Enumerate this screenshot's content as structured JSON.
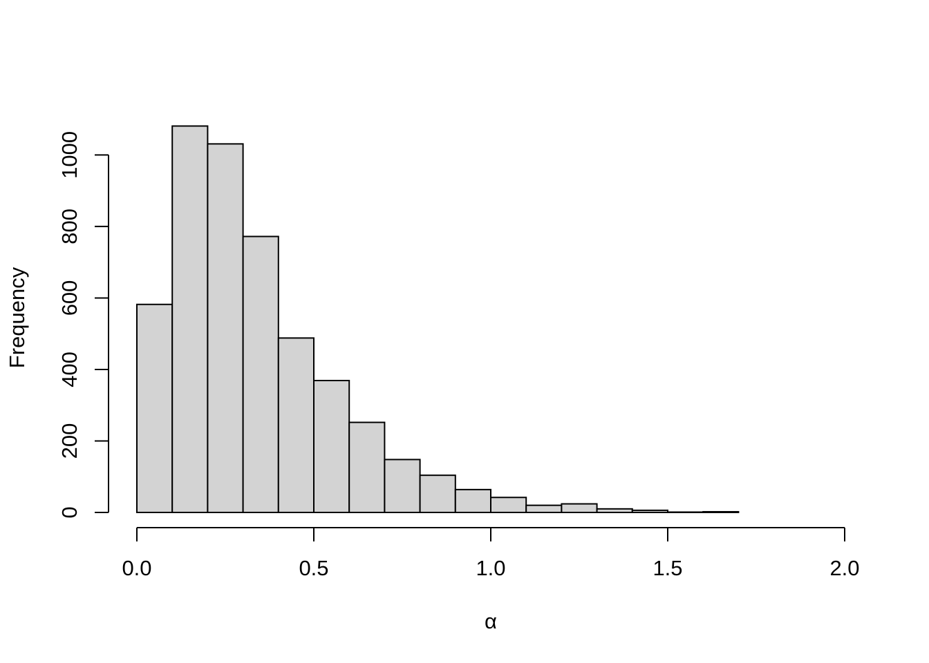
{
  "chart_data": {
    "type": "bar",
    "title": "",
    "xlabel": "α",
    "ylabel": "Frequency",
    "bin_edges": [
      0.0,
      0.1,
      0.2,
      0.3,
      0.4,
      0.5,
      0.6,
      0.7,
      0.8,
      0.9,
      1.0,
      1.1,
      1.2,
      1.3,
      1.4,
      1.5,
      1.6,
      1.7,
      1.8,
      1.9,
      2.0
    ],
    "values": [
      582,
      1081,
      1031,
      772,
      488,
      369,
      252,
      148,
      104,
      64,
      42,
      20,
      24,
      10,
      6,
      1,
      2,
      0,
      0,
      0
    ],
    "xlim": [
      0.0,
      2.0
    ],
    "ylim": [
      0,
      1080
    ],
    "x_ticks": [
      "0.0",
      "0.5",
      "1.0",
      "1.5",
      "2.0"
    ],
    "x_tick_values": [
      0.0,
      0.5,
      1.0,
      1.5,
      2.0
    ],
    "y_ticks": [
      "0",
      "200",
      "400",
      "600",
      "800",
      "1000"
    ],
    "y_tick_values": [
      0,
      200,
      400,
      600,
      800,
      1000
    ],
    "bar_color": "#d3d3d3",
    "grid": false
  }
}
